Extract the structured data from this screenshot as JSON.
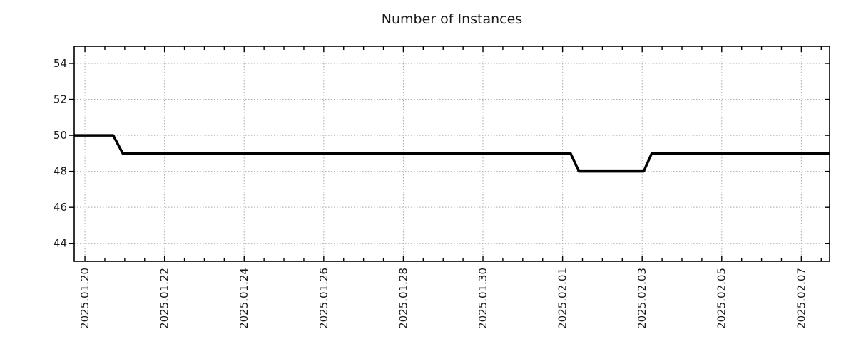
{
  "title": "Number of Instances",
  "colors": {
    "background": "#ffffff",
    "line": "#000000",
    "frame": "#000000",
    "grid": "#a8a8a8",
    "text": "#1a1a1a"
  },
  "chart_data": {
    "type": "line",
    "title": "Number of Instances",
    "xlabel": "",
    "ylabel": "",
    "grid": true,
    "legend": false,
    "x_base_date": "2025-01-20 00:00",
    "xlim_days": [
      -0.27,
      18.71
    ],
    "ylim": [
      43.0,
      54.95
    ],
    "y_ticks": [
      44,
      46,
      48,
      50,
      52,
      54
    ],
    "x_minor_tick_interval_days": 0.5,
    "x_ticks": [
      {
        "label": "2025.01.20",
        "t": 0
      },
      {
        "label": "2025.01.22",
        "t": 2
      },
      {
        "label": "2025.01.24",
        "t": 4
      },
      {
        "label": "2025.01.26",
        "t": 6
      },
      {
        "label": "2025.01.28",
        "t": 8
      },
      {
        "label": "2025.01.30",
        "t": 10
      },
      {
        "label": "2025.02.01",
        "t": 12
      },
      {
        "label": "2025.02.03",
        "t": 14
      },
      {
        "label": "2025.02.05",
        "t": 16
      },
      {
        "label": "2025.02.07",
        "t": 18
      }
    ],
    "series": [
      {
        "name": "Number of Instances",
        "color": "#000000",
        "points": [
          {
            "date": "2025-01-19 17:30",
            "t": -0.27,
            "value": 50
          },
          {
            "date": "2025-01-20 17:00",
            "t": 0.71,
            "value": 50
          },
          {
            "date": "2025-01-20 23:00",
            "t": 0.95,
            "value": 49
          },
          {
            "date": "2025-02-01 05:00",
            "t": 12.2,
            "value": 49
          },
          {
            "date": "2025-02-01 10:00",
            "t": 12.41,
            "value": 48
          },
          {
            "date": "2025-02-03 01:00",
            "t": 14.04,
            "value": 48
          },
          {
            "date": "2025-02-03 06:00",
            "t": 14.24,
            "value": 49
          },
          {
            "date": "2025-02-07 17:00",
            "t": 18.71,
            "value": 49
          }
        ]
      }
    ]
  }
}
